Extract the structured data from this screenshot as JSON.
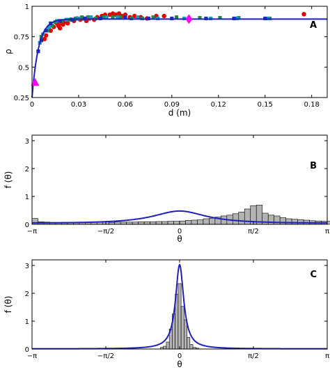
{
  "chart_data": [
    {
      "type": "scatter",
      "panel_label": "A",
      "xlabel": "d (m)",
      "ylabel": "ρ",
      "xlim": [
        0,
        0.19
      ],
      "ylim": [
        0.25,
        1.0
      ],
      "xticks": [
        0,
        0.03,
        0.06,
        0.09,
        0.12,
        0.15,
        0.18
      ],
      "xtick_labels": [
        "0",
        "0.03",
        "0.06",
        "0.09",
        "0.12",
        "0.15",
        "0.18"
      ],
      "yticks": [
        0.25,
        0.5,
        0.75,
        1
      ],
      "ytick_labels": [
        "0.25",
        "0.5",
        "0.75",
        "1"
      ],
      "grid": false,
      "fit_curve": {
        "color": "#1f1fbf",
        "plateau": 0.895,
        "y0": 0.25,
        "decay": 0.0042
      },
      "markers": [
        {
          "shape": "triangle",
          "color": "#ff00ff",
          "x": 0.002,
          "y": 0.375
        },
        {
          "shape": "diamond",
          "color": "#ff00ff",
          "x": 0.101,
          "y": 0.895
        }
      ],
      "series": [
        {
          "marker": "circle",
          "color": "#e60000",
          "points": [
            [
              0.008,
              0.73
            ],
            [
              0.009,
              0.76
            ],
            [
              0.012,
              0.8
            ],
            [
              0.014,
              0.83
            ],
            [
              0.016,
              0.86
            ],
            [
              0.017,
              0.84
            ],
            [
              0.018,
              0.82
            ],
            [
              0.019,
              0.86
            ],
            [
              0.02,
              0.85
            ],
            [
              0.021,
              0.87
            ],
            [
              0.022,
              0.88
            ],
            [
              0.023,
              0.86
            ],
            [
              0.025,
              0.89
            ],
            [
              0.027,
              0.88
            ],
            [
              0.029,
              0.9
            ],
            [
              0.031,
              0.89
            ],
            [
              0.033,
              0.9
            ],
            [
              0.035,
              0.88
            ],
            [
              0.037,
              0.9
            ],
            [
              0.04,
              0.89
            ],
            [
              0.042,
              0.91
            ],
            [
              0.045,
              0.92
            ],
            [
              0.047,
              0.93
            ],
            [
              0.05,
              0.93
            ],
            [
              0.052,
              0.94
            ],
            [
              0.054,
              0.93
            ],
            [
              0.056,
              0.94
            ],
            [
              0.058,
              0.92
            ],
            [
              0.06,
              0.93
            ],
            [
              0.063,
              0.91
            ],
            [
              0.066,
              0.92
            ],
            [
              0.07,
              0.91
            ],
            [
              0.074,
              0.9
            ],
            [
              0.08,
              0.92
            ],
            [
              0.085,
              0.92
            ],
            [
              0.175,
              0.935
            ]
          ]
        },
        {
          "marker": "square",
          "color": "#1a8c3c",
          "points": [
            [
              0.006,
              0.75
            ],
            [
              0.01,
              0.8
            ],
            [
              0.013,
              0.84
            ],
            [
              0.015,
              0.87
            ],
            [
              0.019,
              0.88
            ],
            [
              0.024,
              0.89
            ],
            [
              0.028,
              0.9
            ],
            [
              0.032,
              0.91
            ],
            [
              0.036,
              0.91
            ],
            [
              0.041,
              0.9
            ],
            [
              0.046,
              0.91
            ],
            [
              0.052,
              0.91
            ],
            [
              0.057,
              0.91
            ],
            [
              0.064,
              0.9
            ],
            [
              0.071,
              0.9
            ],
            [
              0.078,
              0.91
            ],
            [
              0.093,
              0.91
            ],
            [
              0.108,
              0.905
            ],
            [
              0.121,
              0.905
            ],
            [
              0.133,
              0.905
            ],
            [
              0.153,
              0.9
            ]
          ]
        },
        {
          "marker": "square",
          "color": "#1a9ab0",
          "points": [
            [
              0.005,
              0.7
            ],
            [
              0.007,
              0.77
            ],
            [
              0.011,
              0.83
            ],
            [
              0.016,
              0.88
            ],
            [
              0.022,
              0.89
            ],
            [
              0.03,
              0.9
            ],
            [
              0.038,
              0.91
            ],
            [
              0.048,
              0.91
            ],
            [
              0.055,
              0.91
            ],
            [
              0.068,
              0.91
            ],
            [
              0.081,
              0.9
            ],
            [
              0.098,
              0.9
            ],
            [
              0.115,
              0.9
            ],
            [
              0.132,
              0.9
            ],
            [
              0.152,
              0.9
            ]
          ]
        },
        {
          "marker": "square",
          "color": "#1a2fb0",
          "points": [
            [
              0.004,
              0.63
            ],
            [
              0.006,
              0.72
            ],
            [
              0.009,
              0.8
            ],
            [
              0.012,
              0.86
            ],
            [
              0.018,
              0.88
            ],
            [
              0.026,
              0.89
            ],
            [
              0.034,
              0.9
            ],
            [
              0.044,
              0.9
            ],
            [
              0.06,
              0.91
            ],
            [
              0.075,
              0.9
            ],
            [
              0.09,
              0.9
            ],
            [
              0.112,
              0.9
            ],
            [
              0.13,
              0.9
            ],
            [
              0.15,
              0.9
            ]
          ]
        }
      ]
    },
    {
      "type": "bar",
      "panel_label": "B",
      "xlabel": "θ",
      "ylabel": "f (θ)",
      "xlim": [
        -3.1416,
        3.1416
      ],
      "ylim": [
        0,
        3.2
      ],
      "xticks": [
        -3.1416,
        -1.5708,
        0,
        1.5708,
        3.1416
      ],
      "xtick_labels": [
        "−π",
        "−π/2",
        "0",
        "π/2",
        "π"
      ],
      "yticks": [
        0,
        1,
        2,
        3
      ],
      "ytick_labels": [
        "0",
        "1",
        "2",
        "3"
      ],
      "bin_width": 0.12566,
      "values": [
        0.21,
        0.09,
        0.08,
        0.07,
        0.07,
        0.07,
        0.07,
        0.07,
        0.07,
        0.07,
        0.07,
        0.07,
        0.08,
        0.07,
        0.08,
        0.08,
        0.08,
        0.08,
        0.09,
        0.09,
        0.09,
        0.1,
        0.1,
        0.11,
        0.11,
        0.12,
        0.14,
        0.15,
        0.16,
        0.2,
        0.22,
        0.26,
        0.3,
        0.33,
        0.38,
        0.44,
        0.55,
        0.67,
        0.69,
        0.4,
        0.33,
        0.3,
        0.24,
        0.2,
        0.18,
        0.17,
        0.15,
        0.13,
        0.12,
        0.11,
        0.11,
        0.1,
        0.09,
        0.09,
        0.08,
        0.09,
        0.08,
        0.07,
        0.07,
        0.07,
        0.07,
        0.07,
        0.07,
        0.07,
        0.06,
        0.07,
        0.06,
        0.06,
        0.07,
        0.06,
        0.06,
        0.08,
        0.06,
        0.07,
        0.06,
        0.07,
        0.05,
        0.05,
        0.05,
        0.05
      ],
      "fit_curve": {
        "type": "wrapped_cauchy",
        "rho": 0.5,
        "color": "#1f1fbf"
      }
    },
    {
      "type": "bar",
      "panel_label": "C",
      "xlabel": "θ",
      "ylabel": "f (θ)",
      "xlim": [
        -3.1416,
        3.1416
      ],
      "ylim": [
        0,
        3.2
      ],
      "xticks": [
        -3.1416,
        -1.5708,
        0,
        1.5708,
        3.1416
      ],
      "xtick_labels": [
        "−π",
        "−π/2",
        "0",
        "π/2",
        "π"
      ],
      "yticks": [
        0,
        1,
        2,
        3
      ],
      "ytick_labels": [
        "0",
        "1",
        "2",
        "3"
      ],
      "bin_width": 0.0628,
      "centers": [
        -0.377,
        -0.314,
        -0.251,
        -0.188,
        -0.126,
        -0.063,
        0.0,
        0.063,
        0.126,
        0.188,
        0.251,
        0.314,
        0.377
      ],
      "values": [
        0.06,
        0.1,
        0.25,
        0.72,
        1.26,
        1.97,
        2.35,
        1.53,
        1.05,
        0.42,
        0.16,
        0.06,
        0.03
      ],
      "fit_curve": {
        "type": "wrapped_cauchy",
        "rho": 0.9,
        "color": "#1f1fbf"
      }
    }
  ]
}
